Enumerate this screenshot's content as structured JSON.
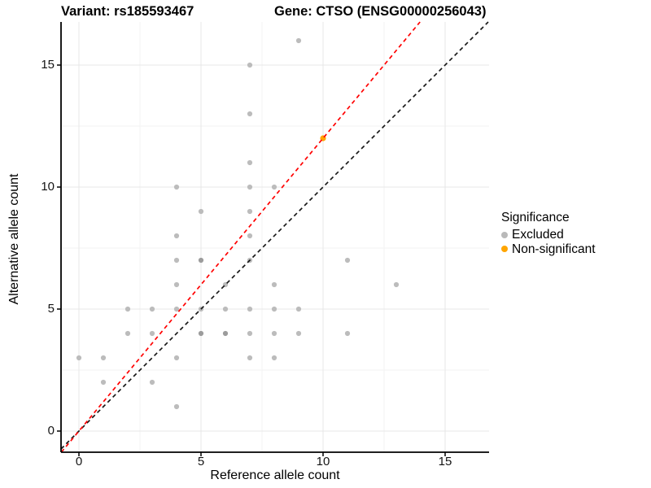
{
  "titles": {
    "variant": "Variant: rs185593467",
    "gene": "Gene: CTSO (ENSG00000256043)"
  },
  "axes": {
    "x_label": "Reference allele count",
    "y_label": "Alternative allele count"
  },
  "legend": {
    "title": "Significance",
    "items": [
      {
        "label": "Excluded",
        "color": "#b9b9b9"
      },
      {
        "label": "Non-significant",
        "color": "#FFA500"
      }
    ]
  },
  "chart_data": {
    "type": "scatter",
    "title": "Variant: rs185593467 | Gene: CTSO (ENSG00000256043)",
    "xlabel": "Reference allele count",
    "ylabel": "Alternative allele count",
    "xlim": [
      -0.73,
      16.8
    ],
    "ylim": [
      -0.87,
      16.77
    ],
    "x_ticks": [
      0,
      5,
      10,
      15
    ],
    "y_ticks": [
      0,
      5,
      10,
      15
    ],
    "x_minor": [
      2.5,
      7.5,
      12.5
    ],
    "y_minor": [
      2.5,
      7.5,
      12.5
    ],
    "grid": "major+minor",
    "legend_position": "right",
    "colors": {
      "excluded_point": "#bcbcbc",
      "excluded_point_overplotted": "#9c9c9c",
      "nonsignificant_point": "#FFA500",
      "identity_line": "#1a1a1a",
      "fit_line": "#ff0000",
      "grid_major": "#e7e7e7",
      "grid_minor": "#f3f3f3",
      "axis": "#000000"
    },
    "series": [
      {
        "name": "Excluded",
        "color": "#bcbcbc",
        "points": [
          [
            0,
            3
          ],
          [
            1,
            2
          ],
          [
            1,
            3
          ],
          [
            2,
            4
          ],
          [
            2,
            5
          ],
          [
            3,
            2
          ],
          [
            3,
            4
          ],
          [
            3,
            5
          ],
          [
            4,
            1
          ],
          [
            4,
            3
          ],
          [
            4,
            5
          ],
          [
            4,
            6
          ],
          [
            4,
            7
          ],
          [
            4,
            8
          ],
          [
            4,
            10
          ],
          [
            5,
            4,
            1
          ],
          [
            5,
            5
          ],
          [
            5,
            7,
            1
          ],
          [
            5,
            9
          ],
          [
            6,
            4,
            1
          ],
          [
            6,
            5
          ],
          [
            6,
            6
          ],
          [
            7,
            3
          ],
          [
            7,
            4
          ],
          [
            7,
            5
          ],
          [
            7,
            7
          ],
          [
            7,
            8
          ],
          [
            7,
            9
          ],
          [
            7,
            10
          ],
          [
            7,
            11
          ],
          [
            7,
            13
          ],
          [
            7,
            15
          ],
          [
            8,
            3
          ],
          [
            8,
            4
          ],
          [
            8,
            5
          ],
          [
            8,
            6
          ],
          [
            8,
            10
          ],
          [
            9,
            4
          ],
          [
            9,
            5
          ],
          [
            9,
            16
          ],
          [
            11,
            4
          ],
          [
            11,
            7
          ],
          [
            13,
            6
          ]
        ]
      },
      {
        "name": "Non-significant",
        "color": "#FFA500",
        "points": [
          [
            10,
            12
          ]
        ]
      }
    ],
    "lines": [
      {
        "name": "identity",
        "slope": 1.0,
        "intercept": 0,
        "color": "#1a1a1a",
        "style": "dashed"
      },
      {
        "name": "fit",
        "slope": 1.2,
        "intercept": 0,
        "color": "#ff0000",
        "style": "dashed"
      }
    ]
  }
}
